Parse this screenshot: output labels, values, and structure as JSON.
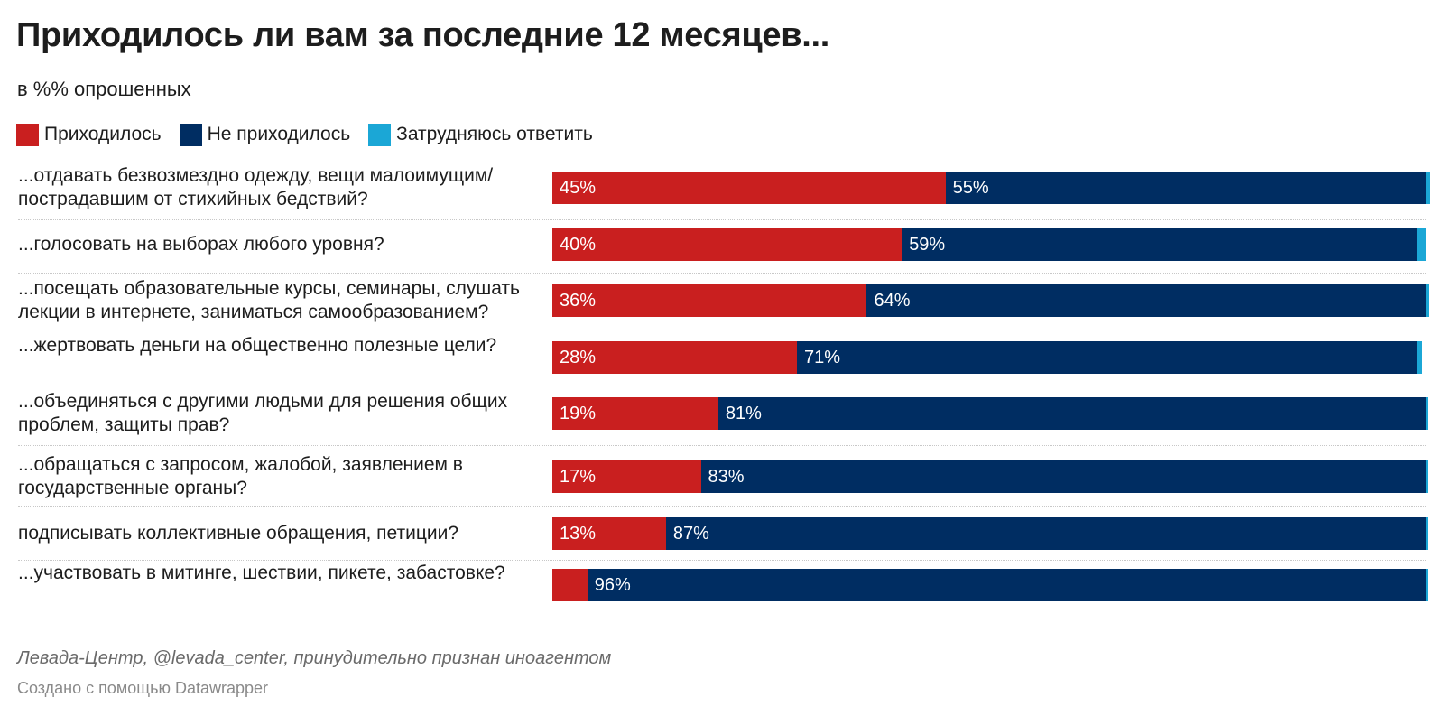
{
  "title": "Приходилось ли вам за последние 12 месяцев...",
  "subtitle": "в %% опрошенных",
  "source": "Левада-Центр, @levada_center, принудительно признан иноагентом",
  "credit": "Создано с помощью Datawrapper",
  "colors": {
    "yes": "#c91f1f",
    "no": "#002d62",
    "hard": "#1ba7d6"
  },
  "chart_data": {
    "type": "bar",
    "stacked": true,
    "orientation": "horizontal",
    "xlim": [
      0,
      100
    ],
    "legend_position": "top-left",
    "grid": false,
    "title": "Приходилось ли вам за последние 12 месяцев...",
    "subtitle": "в %% опрошенных",
    "categories": [
      "...отдавать безвозмездно одежду, вещи малоимущим/ пострадавшим от стихийных бедствий?",
      "...голосовать на выборах любого уровня?",
      "...посещать образовательные курсы, семинары, слушать лекции в интернете, заниматься самообразованием?",
      "...жертвовать деньги на общественно полезные цели?",
      "...объединяться с другими людьми для решения общих проблем, защиты прав?",
      "...обращаться с запросом, жалобой, заявлением в государственные органы?",
      "подписывать коллективные обращения, петиции?",
      "...участвовать в митинге, шествии, пикете, забастовке?"
    ],
    "series": [
      {
        "name": "Приходилось",
        "color": "#c91f1f",
        "values": [
          45,
          40,
          36,
          28,
          19,
          17,
          13,
          4
        ],
        "labels": [
          "45%",
          "40%",
          "36%",
          "28%",
          "19%",
          "17%",
          "13%",
          ""
        ]
      },
      {
        "name": "Не приходилось",
        "color": "#002d62",
        "values": [
          55,
          59,
          64,
          71,
          81,
          83,
          87,
          96
        ],
        "labels": [
          "55%",
          "59%",
          "64%",
          "71%",
          "81%",
          "83%",
          "87%",
          "96%"
        ]
      },
      {
        "name": "Затрудняюсь ответить",
        "color": "#1ba7d6",
        "values": [
          0.4,
          1,
          0.3,
          0.6,
          0.2,
          0.2,
          0.2,
          0.2
        ],
        "labels": [
          "",
          "",
          "",
          "",
          "",
          "",
          "",
          ""
        ]
      }
    ]
  }
}
